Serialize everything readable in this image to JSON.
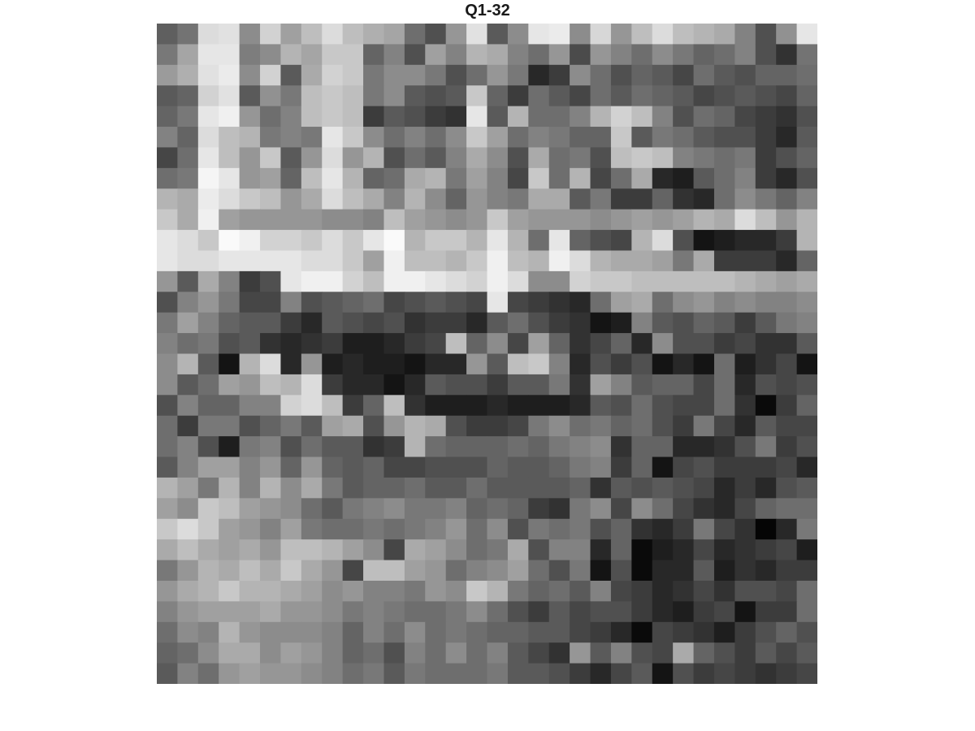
{
  "chart_data": {
    "type": "heatmap",
    "title": "Q1-32",
    "colormap": "gray",
    "clim": [
      0,
      255
    ],
    "rows": 32,
    "cols": 32,
    "axes_visible": false,
    "values": [
      [
        95,
        115,
        220,
        225,
        140,
        210,
        160,
        190,
        220,
        190,
        175,
        165,
        110,
        80,
        150,
        225,
        90,
        140,
        230,
        235,
        140,
        215,
        150,
        190,
        220,
        190,
        180,
        170,
        130,
        80,
        145,
        230
      ],
      [
        120,
        165,
        230,
        230,
        125,
        140,
        180,
        165,
        200,
        200,
        100,
        130,
        80,
        160,
        130,
        180,
        170,
        130,
        110,
        150,
        75,
        150,
        130,
        110,
        140,
        120,
        100,
        110,
        130,
        80,
        50,
        115
      ],
      [
        155,
        175,
        225,
        235,
        140,
        210,
        90,
        170,
        210,
        200,
        120,
        140,
        140,
        120,
        80,
        110,
        150,
        120,
        40,
        60,
        140,
        110,
        80,
        100,
        90,
        70,
        110,
        90,
        80,
        100,
        100,
        110
      ],
      [
        90,
        100,
        210,
        225,
        90,
        145,
        120,
        190,
        200,
        190,
        120,
        140,
        90,
        80,
        90,
        200,
        100,
        60,
        110,
        90,
        70,
        110,
        90,
        110,
        100,
        90,
        70,
        80,
        90,
        80,
        70,
        100
      ],
      [
        100,
        120,
        230,
        240,
        150,
        110,
        130,
        190,
        200,
        190,
        60,
        90,
        80,
        60,
        50,
        230,
        90,
        180,
        110,
        110,
        130,
        180,
        210,
        190,
        130,
        80,
        110,
        100,
        70,
        60,
        50,
        80
      ],
      [
        130,
        100,
        220,
        190,
        180,
        120,
        130,
        120,
        230,
        200,
        140,
        110,
        130,
        110,
        140,
        200,
        160,
        110,
        130,
        120,
        100,
        100,
        200,
        90,
        120,
        110,
        90,
        80,
        80,
        60,
        40,
        90
      ],
      [
        70,
        110,
        230,
        190,
        150,
        200,
        90,
        150,
        220,
        150,
        180,
        80,
        110,
        90,
        130,
        170,
        140,
        80,
        170,
        110,
        120,
        80,
        190,
        200,
        190,
        130,
        120,
        110,
        120,
        60,
        80,
        100
      ],
      [
        110,
        120,
        245,
        230,
        150,
        160,
        100,
        190,
        230,
        180,
        100,
        110,
        170,
        180,
        120,
        160,
        130,
        70,
        200,
        110,
        180,
        70,
        110,
        170,
        40,
        30,
        90,
        110,
        130,
        60,
        40,
        80
      ],
      [
        180,
        170,
        235,
        220,
        200,
        190,
        150,
        170,
        220,
        190,
        170,
        130,
        180,
        140,
        100,
        150,
        130,
        120,
        170,
        170,
        90,
        120,
        60,
        60,
        100,
        50,
        40,
        110,
        140,
        120,
        100,
        130
      ],
      [
        200,
        170,
        240,
        160,
        150,
        150,
        150,
        150,
        140,
        140,
        130,
        190,
        160,
        150,
        140,
        150,
        200,
        160,
        150,
        150,
        150,
        140,
        150,
        160,
        150,
        160,
        180,
        170,
        220,
        190,
        150,
        180
      ],
      [
        230,
        220,
        200,
        250,
        240,
        210,
        210,
        200,
        220,
        200,
        230,
        250,
        180,
        200,
        200,
        180,
        230,
        180,
        110,
        230,
        100,
        80,
        70,
        180,
        220,
        80,
        20,
        30,
        40,
        40,
        60,
        180
      ],
      [
        230,
        220,
        220,
        230,
        230,
        230,
        230,
        220,
        220,
        200,
        160,
        240,
        190,
        190,
        180,
        200,
        240,
        190,
        180,
        240,
        220,
        180,
        170,
        170,
        160,
        120,
        170,
        60,
        60,
        60,
        40,
        100
      ],
      [
        150,
        90,
        170,
        130,
        60,
        80,
        230,
        240,
        240,
        210,
        190,
        240,
        240,
        230,
        220,
        210,
        240,
        220,
        140,
        140,
        210,
        200,
        200,
        190,
        190,
        190,
        190,
        190,
        180,
        170,
        160,
        170
      ],
      [
        80,
        130,
        150,
        120,
        70,
        70,
        130,
        80,
        90,
        100,
        110,
        70,
        80,
        90,
        80,
        70,
        230,
        70,
        60,
        50,
        40,
        110,
        160,
        170,
        110,
        140,
        150,
        130,
        140,
        130,
        130,
        140
      ],
      [
        120,
        160,
        130,
        100,
        90,
        90,
        60,
        40,
        90,
        80,
        70,
        80,
        50,
        60,
        60,
        40,
        90,
        110,
        80,
        60,
        50,
        20,
        30,
        130,
        90,
        80,
        100,
        90,
        60,
        90,
        120,
        130
      ],
      [
        130,
        110,
        120,
        80,
        90,
        50,
        40,
        50,
        60,
        30,
        30,
        40,
        60,
        70,
        190,
        100,
        140,
        70,
        160,
        100,
        50,
        70,
        100,
        40,
        140,
        80,
        80,
        60,
        70,
        50,
        50,
        90
      ],
      [
        140,
        180,
        90,
        20,
        180,
        220,
        40,
        150,
        30,
        40,
        30,
        30,
        20,
        40,
        40,
        150,
        90,
        190,
        200,
        130,
        40,
        80,
        60,
        80,
        20,
        40,
        20,
        110,
        30,
        50,
        70,
        20
      ],
      [
        140,
        90,
        110,
        160,
        150,
        190,
        180,
        220,
        60,
        40,
        40,
        20,
        40,
        90,
        80,
        80,
        60,
        90,
        90,
        120,
        50,
        160,
        130,
        90,
        100,
        100,
        70,
        110,
        40,
        80,
        70,
        80
      ],
      [
        80,
        130,
        100,
        100,
        130,
        130,
        210,
        220,
        190,
        60,
        100,
        190,
        50,
        30,
        30,
        30,
        40,
        30,
        30,
        30,
        40,
        90,
        80,
        110,
        80,
        70,
        70,
        110,
        50,
        10,
        60,
        100
      ],
      [
        110,
        60,
        120,
        120,
        80,
        100,
        120,
        90,
        160,
        170,
        80,
        150,
        180,
        170,
        80,
        60,
        60,
        70,
        120,
        140,
        110,
        120,
        100,
        110,
        80,
        60,
        120,
        70,
        40,
        90,
        70,
        70
      ],
      [
        110,
        130,
        80,
        30,
        120,
        130,
        80,
        110,
        90,
        90,
        50,
        60,
        180,
        110,
        100,
        100,
        100,
        110,
        100,
        120,
        130,
        140,
        50,
        100,
        100,
        40,
        40,
        50,
        80,
        120,
        60,
        80
      ],
      [
        90,
        130,
        160,
        160,
        130,
        150,
        100,
        150,
        100,
        90,
        100,
        70,
        70,
        80,
        80,
        80,
        100,
        90,
        90,
        100,
        120,
        130,
        60,
        100,
        20,
        70,
        80,
        60,
        60,
        60,
        70,
        40
      ],
      [
        180,
        160,
        120,
        180,
        130,
        180,
        140,
        170,
        120,
        90,
        100,
        100,
        110,
        90,
        90,
        110,
        90,
        90,
        90,
        90,
        100,
        50,
        90,
        80,
        90,
        80,
        70,
        40,
        60,
        40,
        80,
        90
      ],
      [
        160,
        140,
        200,
        190,
        160,
        150,
        140,
        110,
        90,
        120,
        130,
        140,
        120,
        120,
        130,
        100,
        110,
        100,
        60,
        50,
        120,
        140,
        70,
        140,
        110,
        70,
        50,
        40,
        70,
        100,
        110,
        110
      ],
      [
        200,
        220,
        200,
        160,
        150,
        130,
        160,
        120,
        110,
        110,
        120,
        110,
        120,
        130,
        150,
        110,
        140,
        80,
        120,
        110,
        120,
        80,
        100,
        50,
        40,
        60,
        120,
        70,
        50,
        5,
        40,
        120
      ],
      [
        170,
        190,
        170,
        160,
        170,
        150,
        190,
        190,
        180,
        160,
        140,
        70,
        170,
        160,
        140,
        110,
        120,
        170,
        80,
        130,
        130,
        40,
        100,
        10,
        30,
        40,
        70,
        40,
        50,
        60,
        70,
        30
      ],
      [
        120,
        150,
        180,
        170,
        190,
        170,
        200,
        170,
        150,
        70,
        190,
        190,
        160,
        150,
        110,
        130,
        140,
        160,
        110,
        80,
        120,
        20,
        80,
        10,
        40,
        40,
        90,
        30,
        50,
        40,
        60,
        60
      ],
      [
        150,
        170,
        180,
        200,
        180,
        180,
        170,
        160,
        140,
        150,
        130,
        130,
        120,
        150,
        140,
        200,
        180,
        120,
        100,
        110,
        90,
        130,
        70,
        60,
        40,
        50,
        70,
        50,
        80,
        80,
        70,
        110
      ],
      [
        130,
        150,
        160,
        160,
        160,
        170,
        150,
        150,
        140,
        120,
        130,
        120,
        110,
        110,
        120,
        140,
        110,
        80,
        60,
        90,
        70,
        80,
        80,
        60,
        40,
        30,
        60,
        70,
        20,
        60,
        60,
        110
      ],
      [
        110,
        140,
        130,
        180,
        150,
        140,
        140,
        140,
        130,
        100,
        130,
        110,
        140,
        110,
        120,
        110,
        100,
        100,
        90,
        90,
        70,
        60,
        40,
        10,
        70,
        60,
        50,
        30,
        60,
        80,
        100,
        80
      ],
      [
        100,
        110,
        140,
        170,
        170,
        140,
        160,
        150,
        130,
        100,
        110,
        80,
        130,
        110,
        140,
        110,
        130,
        90,
        70,
        50,
        150,
        90,
        130,
        80,
        70,
        170,
        100,
        80,
        60,
        90,
        70,
        90
      ],
      [
        90,
        130,
        110,
        150,
        160,
        150,
        150,
        140,
        130,
        110,
        120,
        90,
        120,
        110,
        110,
        110,
        120,
        90,
        90,
        80,
        60,
        40,
        70,
        90,
        20,
        80,
        60,
        70,
        60,
        50,
        60,
        70
      ]
    ]
  }
}
